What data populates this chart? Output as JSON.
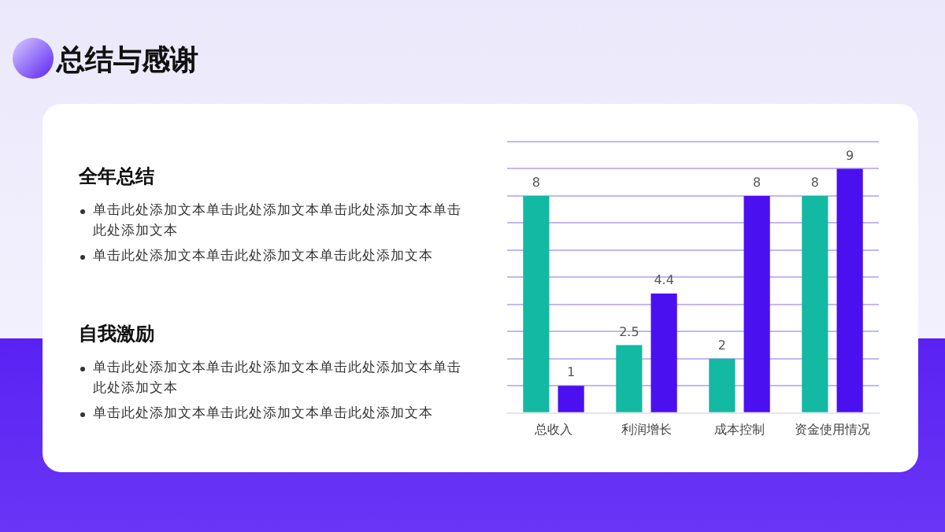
{
  "chart_data": {
    "type": "bar",
    "title": "总结与感谢",
    "annotations": [
      "全年总结",
      "单击此处添加文本单击此处添加文本单击此处添加文本单击此处添加文本",
      "单击此处添加文本单击此处添加文本单击此处添加文本",
      "自我激励",
      "单击此处添加文本单击此处添加文本单击此处添加文本单击此处添加文本",
      "单击此处添加文本单击此处添加文本单击此处添加文本"
    ],
    "categories": [
      "总收入",
      "利润增长",
      "成本控制",
      "资金使用情况"
    ],
    "series": [
      {
        "color": "#13b9a2",
        "values": [
          8,
          2.5,
          2,
          8
        ]
      },
      {
        "color": "#4a10f0",
        "values": [
          1,
          4.4,
          8,
          9
        ]
      }
    ],
    "ylim": [
      0,
      10
    ],
    "yticks": [
      {
        "value": 0,
        "label": null
      },
      {
        "value": 1,
        "label": null
      },
      {
        "value": 2,
        "label": null
      },
      {
        "value": 3,
        "label": null
      },
      {
        "value": 4,
        "label": null
      },
      {
        "value": 5,
        "label": null
      },
      {
        "value": 6,
        "label": null
      },
      {
        "value": 7,
        "label": null
      },
      {
        "value": 8,
        "label": null
      },
      {
        "value": 9,
        "label": null
      },
      {
        "value": 10,
        "label": null
      }
    ],
    "tick_labels": "x",
    "grid": "y",
    "legend": false,
    "data_labels": true
  }
}
